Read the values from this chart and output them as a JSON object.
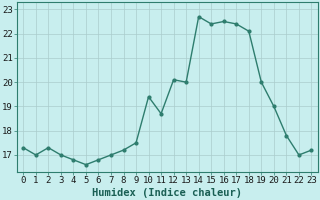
{
  "x": [
    0,
    1,
    2,
    3,
    4,
    5,
    6,
    7,
    8,
    9,
    10,
    11,
    12,
    13,
    14,
    15,
    16,
    17,
    18,
    19,
    20,
    21,
    22,
    23
  ],
  "y": [
    17.3,
    17.0,
    17.3,
    17.0,
    16.8,
    16.6,
    16.8,
    17.0,
    17.2,
    17.5,
    19.4,
    18.7,
    20.1,
    20.0,
    22.7,
    22.4,
    22.5,
    22.4,
    22.1,
    20.0,
    19.0,
    17.8,
    17.0,
    17.2
  ],
  "line_color": "#2e7d6e",
  "marker": "o",
  "markersize": 2,
  "linewidth": 1.0,
  "background_color": "#c8eeee",
  "grid_color": "#aacccc",
  "xlabel": "Humidex (Indice chaleur)",
  "xlabel_fontsize": 7.5,
  "tick_fontsize": 6.5,
  "ylim": [
    16.3,
    23.3
  ],
  "xlim": [
    -0.5,
    23.5
  ],
  "yticks": [
    17,
    18,
    19,
    20,
    21,
    22,
    23
  ],
  "xticks": [
    0,
    1,
    2,
    3,
    4,
    5,
    6,
    7,
    8,
    9,
    10,
    11,
    12,
    13,
    14,
    15,
    16,
    17,
    18,
    19,
    20,
    21,
    22,
    23
  ]
}
